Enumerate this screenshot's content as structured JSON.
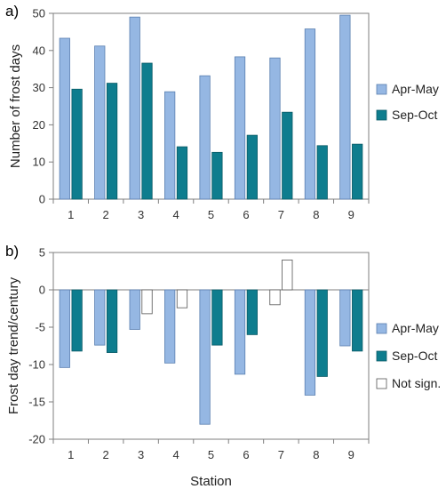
{
  "chart_data": [
    {
      "type": "bar",
      "panel_label": "a)",
      "xlabel": "",
      "ylabel": "Number of frost days",
      "categories": [
        "1",
        "2",
        "3",
        "4",
        "5",
        "6",
        "7",
        "8",
        "9"
      ],
      "ylim": [
        0,
        50
      ],
      "yticks": [
        "0",
        "10",
        "20",
        "30",
        "40",
        "50"
      ],
      "grid": false,
      "legend_position": "right",
      "series": [
        {
          "name": "Apr-May",
          "values": [
            43.3,
            41.2,
            49.0,
            28.9,
            33.2,
            38.3,
            38.0,
            45.8,
            49.5
          ],
          "color": "#95B7E3"
        },
        {
          "name": "Sep-Oct",
          "values": [
            29.6,
            31.2,
            36.6,
            14.1,
            12.6,
            17.2,
            23.4,
            14.4,
            14.8
          ],
          "color": "#0E7D8E"
        }
      ]
    },
    {
      "type": "bar",
      "panel_label": "b)",
      "xlabel": "Station",
      "ylabel": "Frost day trend/century",
      "categories": [
        "1",
        "2",
        "3",
        "4",
        "5",
        "6",
        "7",
        "8",
        "9"
      ],
      "ylim": [
        -20,
        5
      ],
      "yticks": [
        "5",
        "0",
        "-5",
        "-10",
        "-15",
        "-20"
      ],
      "grid": false,
      "legend_position": "right",
      "series": [
        {
          "name": "Apr-May",
          "values": [
            -10.4,
            -7.4,
            -5.3,
            -9.8,
            -18.0,
            -11.3,
            -2.0,
            -14.1,
            -7.5
          ],
          "significant": [
            true,
            true,
            true,
            true,
            true,
            true,
            false,
            true,
            true
          ],
          "color": "#95B7E3"
        },
        {
          "name": "Sep-Oct",
          "values": [
            -8.2,
            -8.4,
            -3.2,
            -2.4,
            -7.4,
            -6.0,
            4.0,
            -11.6,
            -8.2
          ],
          "significant": [
            true,
            true,
            false,
            false,
            true,
            true,
            false,
            true,
            true
          ],
          "color": "#0E7D8E"
        }
      ],
      "not_significant_label": "Not sign.",
      "not_significant_color": "#FFFFFF"
    }
  ]
}
